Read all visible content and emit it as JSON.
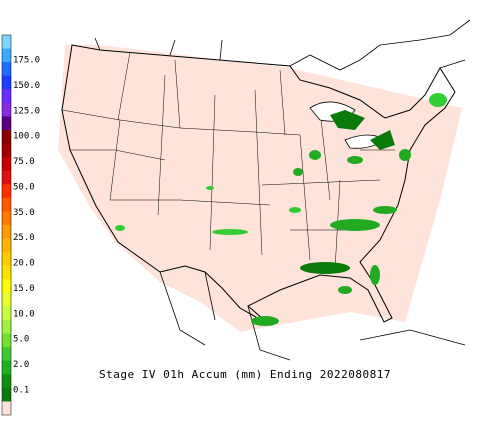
{
  "title": "Stage IV 01h Accum (mm) Ending 2022080817",
  "legend": {
    "labels": [
      "175.0",
      "150.0",
      "125.0",
      "100.0",
      "75.0",
      "50.0",
      "35.0",
      "25.0",
      "20.0",
      "15.0",
      "10.0",
      "5.0",
      "2.0",
      "0.1"
    ]
  }
}
